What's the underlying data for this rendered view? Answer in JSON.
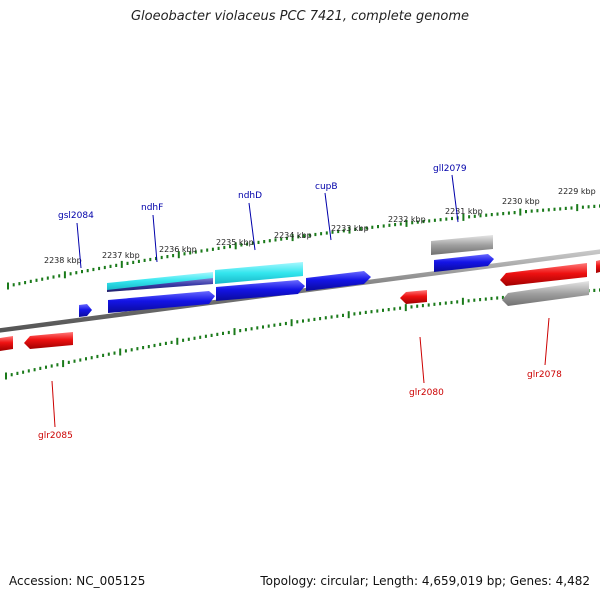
{
  "title": "Gloeobacter violaceus PCC 7421, complete genome",
  "footer": {
    "accession": "Accession: NC_005125",
    "stats": "Topology: circular; Length: 4,659,019 bp; Genes: 4,482"
  },
  "colors": {
    "forward_gene": "#1414e6",
    "reverse_gene": "#ee1111",
    "cds_light": "#33e6ee",
    "cds_dark": "#3a3aa8",
    "other_gene": "#a0a0a0",
    "backbone": "#777777",
    "tick": "#1a7a1a",
    "label_forward": "#0000aa",
    "label_reverse": "#cc0000",
    "text": "#222222"
  },
  "scale_labels": [
    "2238 kbp",
    "2237 kbp",
    "2236 kbp",
    "2235 kbp",
    "2234 kbp",
    "2233 kbp",
    "2232 kbp",
    "2231 kbp",
    "2230 kbp",
    "2229 kbp"
  ],
  "genes_forward": [
    {
      "name": "gsl2084"
    },
    {
      "name": "ndhF"
    },
    {
      "name": "ndhD"
    },
    {
      "name": "cupB"
    },
    {
      "name": "gll2079"
    }
  ],
  "genes_reverse": [
    {
      "name": "glr2085"
    },
    {
      "name": "glr2080"
    },
    {
      "name": "glr2078"
    }
  ]
}
